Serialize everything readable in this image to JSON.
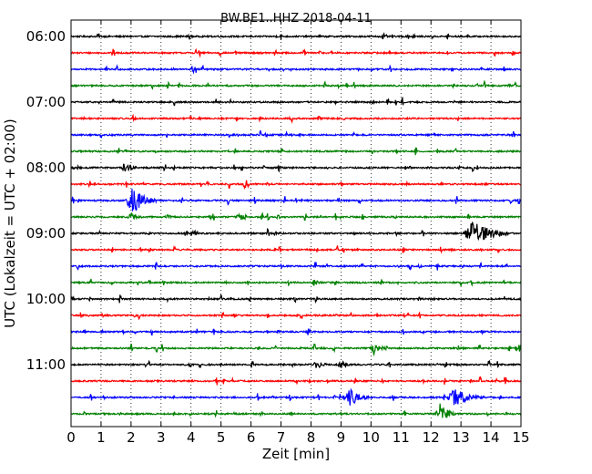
{
  "chart_data": {
    "type": "line",
    "title": "BW.BE1..HHZ 2018-04-11",
    "xlabel": "Zeit  [min]",
    "ylabel": "UTC (Lokalzeit = UTC + 02:00)",
    "xlim": [
      0,
      15
    ],
    "x_ticks": [
      "0",
      "1",
      "2",
      "3",
      "4",
      "5",
      "6",
      "7",
      "8",
      "9",
      "10",
      "11",
      "12",
      "13",
      "14",
      "15"
    ],
    "y_tick_labels": [
      "06:00",
      "07:00",
      "08:00",
      "09:00",
      "10:00",
      "11:00"
    ],
    "grid": "vertical dotted",
    "legend": "none",
    "trace_interval_min": 15,
    "trace_colors": [
      "#000000",
      "#ff0000",
      "#0000ff",
      "#008000"
    ],
    "traces": [
      {
        "start": "06:00",
        "color": "#000000",
        "events": [
          {
            "t": 6.8,
            "amp": 0.4,
            "dur": 0.1
          }
        ]
      },
      {
        "start": "06:15",
        "color": "#ff0000",
        "events": [
          {
            "t": 14.7,
            "amp": 1.6,
            "dur": 0.05
          }
        ]
      },
      {
        "start": "06:30",
        "color": "#0000ff",
        "events": [
          {
            "t": 3.4,
            "amp": 0.35,
            "dur": 0.1
          },
          {
            "t": 6.6,
            "amp": 0.25,
            "dur": 0.1
          }
        ]
      },
      {
        "start": "06:45",
        "color": "#008000",
        "events": []
      },
      {
        "start": "07:00",
        "color": "#000000",
        "events": [
          {
            "t": 9.0,
            "amp": 0.25,
            "dur": 0.1
          }
        ]
      },
      {
        "start": "07:15",
        "color": "#ff0000",
        "events": [
          {
            "t": 7.3,
            "amp": 0.35,
            "dur": 0.2
          }
        ]
      },
      {
        "start": "07:30",
        "color": "#0000ff",
        "events": []
      },
      {
        "start": "07:45",
        "color": "#008000",
        "events": []
      },
      {
        "start": "08:00",
        "color": "#000000",
        "events": [
          {
            "t": 1.8,
            "amp": 0.7,
            "dur": 0.5
          }
        ]
      },
      {
        "start": "08:15",
        "color": "#ff0000",
        "events": [
          {
            "t": 11.2,
            "amp": 0.25,
            "dur": 0.1
          }
        ]
      },
      {
        "start": "08:30",
        "color": "#0000ff",
        "events": [
          {
            "t": 2.05,
            "amp": 1.7,
            "dur": 0.8
          }
        ]
      },
      {
        "start": "08:45",
        "color": "#008000",
        "events": [
          {
            "t": 2.0,
            "amp": 0.6,
            "dur": 0.5
          },
          {
            "t": 3.2,
            "amp": 0.3,
            "dur": 0.4
          },
          {
            "t": 5.6,
            "amp": 0.5,
            "dur": 0.4
          },
          {
            "t": 6.9,
            "amp": 0.3,
            "dur": 0.2
          }
        ]
      },
      {
        "start": "09:00",
        "color": "#000000",
        "events": [
          {
            "t": 13.4,
            "amp": 1.6,
            "dur": 1.2
          }
        ]
      },
      {
        "start": "09:15",
        "color": "#ff0000",
        "events": [
          {
            "t": 8.2,
            "amp": 0.3,
            "dur": 0.1
          }
        ]
      },
      {
        "start": "09:30",
        "color": "#0000ff",
        "events": [
          {
            "t": 11.6,
            "amp": 0.3,
            "dur": 0.2
          }
        ]
      },
      {
        "start": "09:45",
        "color": "#008000",
        "events": [
          {
            "t": 8.1,
            "amp": 0.4,
            "dur": 0.4
          }
        ]
      },
      {
        "start": "10:00",
        "color": "#000000",
        "events": [
          {
            "t": 0.6,
            "amp": 0.2,
            "dur": 0.1
          }
        ]
      },
      {
        "start": "10:15",
        "color": "#ff0000",
        "events": [
          {
            "t": 10.2,
            "amp": 0.35,
            "dur": 0.1
          }
        ]
      },
      {
        "start": "10:30",
        "color": "#0000ff",
        "events": [
          {
            "t": 5.0,
            "amp": 0.3,
            "dur": 0.1
          }
        ]
      },
      {
        "start": "10:45",
        "color": "#008000",
        "events": [
          {
            "t": 10.1,
            "amp": 0.8,
            "dur": 0.5
          }
        ]
      },
      {
        "start": "11:00",
        "color": "#000000",
        "events": [
          {
            "t": 8.2,
            "amp": 0.55,
            "dur": 0.5
          },
          {
            "t": 9.0,
            "amp": 0.6,
            "dur": 0.4
          }
        ]
      },
      {
        "start": "11:15",
        "color": "#ff0000",
        "events": [
          {
            "t": 7.5,
            "amp": 0.4,
            "dur": 0.2
          }
        ]
      },
      {
        "start": "11:30",
        "color": "#0000ff",
        "events": [
          {
            "t": 9.3,
            "amp": 1.1,
            "dur": 0.7
          },
          {
            "t": 12.8,
            "amp": 1.1,
            "dur": 1.0
          }
        ]
      },
      {
        "start": "11:45",
        "color": "#008000",
        "events": [
          {
            "t": 12.3,
            "amp": 1.5,
            "dur": 0.5
          }
        ]
      }
    ]
  }
}
